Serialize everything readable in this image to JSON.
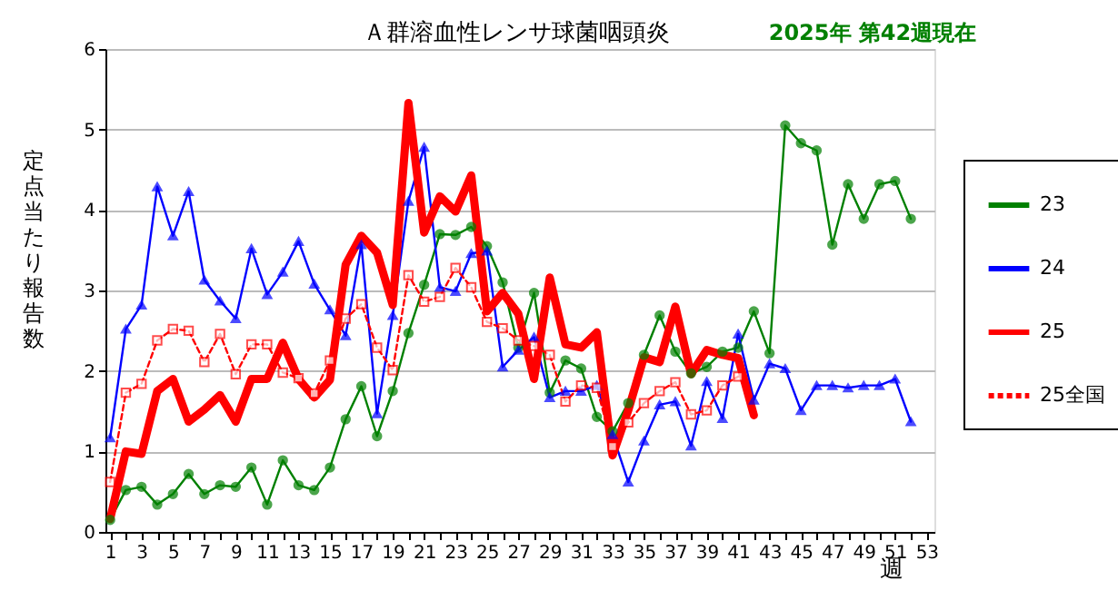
{
  "chart_data": {
    "type": "line",
    "title": "Ａ群溶血性レンサ球菌咽頭炎",
    "subtitle": "2025年 第42週現在",
    "xlabel": "週",
    "ylabel": "定点当たり報告数",
    "x": [
      1,
      2,
      3,
      4,
      5,
      6,
      7,
      8,
      9,
      10,
      11,
      12,
      13,
      14,
      15,
      16,
      17,
      18,
      19,
      20,
      21,
      22,
      23,
      24,
      25,
      26,
      27,
      28,
      29,
      30,
      31,
      32,
      33,
      34,
      35,
      36,
      37,
      38,
      39,
      40,
      41,
      42,
      43,
      44,
      45,
      46,
      47,
      48,
      49,
      50,
      51,
      52
    ],
    "series": [
      {
        "name": "23",
        "color": "#008000",
        "marker": "circle",
        "line_style": "solid",
        "values": [
          0.15,
          0.52,
          0.56,
          0.34,
          0.47,
          0.72,
          0.47,
          0.58,
          0.56,
          0.8,
          0.34,
          0.89,
          0.58,
          0.52,
          0.8,
          1.4,
          1.81,
          1.19,
          1.75,
          2.47,
          3.07,
          3.7,
          3.69,
          3.79,
          3.55,
          3.1,
          2.29,
          2.97,
          1.73,
          2.13,
          2.03,
          1.43,
          1.25,
          1.6,
          2.2,
          2.69,
          2.24,
          1.97,
          2.05,
          2.24,
          2.29,
          2.74,
          2.22,
          5.05,
          4.83,
          4.74,
          3.57,
          4.32,
          3.89,
          4.32,
          4.36,
          3.89
        ]
      },
      {
        "name": "24",
        "color": "#0000ff",
        "marker": "triangle",
        "line_style": "solid",
        "values": [
          1.17,
          2.52,
          2.82,
          4.29,
          3.68,
          4.23,
          3.13,
          2.87,
          2.65,
          3.52,
          2.95,
          3.23,
          3.61,
          3.08,
          2.76,
          2.44,
          3.57,
          1.47,
          2.69,
          4.11,
          4.78,
          3.04,
          2.99,
          3.46,
          3.49,
          2.05,
          2.26,
          2.42,
          1.67,
          1.75,
          1.75,
          1.82,
          1.21,
          0.62,
          1.13,
          1.58,
          1.62,
          1.07,
          1.87,
          1.41,
          2.46,
          1.64,
          2.09,
          2.03,
          1.51,
          1.82,
          1.82,
          1.79,
          1.82,
          1.82,
          1.9,
          1.37
        ]
      },
      {
        "name": "25",
        "color": "#ff0000",
        "marker": "none",
        "line_style": "solid",
        "values": [
          0.16,
          1.0,
          0.97,
          1.75,
          1.9,
          1.37,
          1.52,
          1.7,
          1.37,
          1.9,
          1.9,
          2.35,
          1.9,
          1.67,
          1.89,
          3.32,
          3.68,
          3.47,
          2.82,
          5.33,
          3.72,
          4.17,
          3.98,
          4.43,
          2.74,
          2.97,
          2.71,
          1.9,
          3.16,
          2.33,
          2.29,
          2.48,
          0.95,
          1.51,
          2.17,
          2.11,
          2.8,
          1.96,
          2.26,
          2.2,
          2.16,
          1.45,
          null,
          null,
          null,
          null,
          null,
          null,
          null,
          null,
          null,
          null
        ]
      },
      {
        "name": "25全国",
        "color": "#ff0000",
        "marker": "square",
        "line_style": "dashed",
        "values": [
          0.62,
          1.73,
          1.84,
          2.38,
          2.52,
          2.5,
          2.11,
          2.46,
          1.96,
          2.33,
          2.33,
          1.98,
          1.91,
          1.72,
          2.13,
          2.65,
          2.83,
          2.29,
          2.01,
          3.19,
          2.86,
          2.92,
          3.28,
          3.04,
          2.61,
          2.53,
          2.38,
          2.31,
          2.2,
          1.62,
          1.82,
          1.79,
          1.06,
          1.36,
          1.6,
          1.75,
          1.86,
          1.46,
          1.51,
          1.82,
          1.93,
          null,
          null,
          null,
          null,
          null,
          null,
          null,
          null,
          null,
          null,
          null
        ]
      }
    ],
    "xlim": [
      0.7,
      53.5
    ],
    "xticks": [
      1,
      {
        "value": 2,
        "label": null
      },
      3,
      {
        "value": 4,
        "label": null
      },
      5,
      {
        "value": 6,
        "label": null
      },
      7,
      {
        "value": 8,
        "label": null
      },
      9,
      {
        "value": 10,
        "label": null
      },
      11,
      {
        "value": 12,
        "label": null
      },
      13,
      {
        "value": 14,
        "label": null
      },
      15,
      {
        "value": 16,
        "label": null
      },
      17,
      {
        "value": 18,
        "label": null
      },
      19,
      {
        "value": 20,
        "label": null
      },
      21,
      {
        "value": 22,
        "label": null
      },
      23,
      {
        "value": 24,
        "label": null
      },
      25,
      {
        "value": 26,
        "label": null
      },
      27,
      {
        "value": 28,
        "label": null
      },
      29,
      {
        "value": 30,
        "label": null
      },
      31,
      {
        "value": 32,
        "label": null
      },
      33,
      {
        "value": 34,
        "label": null
      },
      35,
      {
        "value": 36,
        "label": null
      },
      37,
      {
        "value": 38,
        "label": null
      },
      39,
      {
        "value": 40,
        "label": null
      },
      41,
      {
        "value": 42,
        "label": null
      },
      43,
      {
        "value": 44,
        "label": null
      },
      45,
      {
        "value": 46,
        "label": null
      },
      47,
      {
        "value": 48,
        "label": null
      },
      49,
      {
        "value": 50,
        "label": null
      },
      51,
      {
        "value": 52,
        "label": null
      },
      53
    ],
    "ylim": [
      0,
      6
    ],
    "yticks": [
      0,
      1,
      2,
      3,
      4,
      5,
      6
    ],
    "grid": "y",
    "legend": "right"
  }
}
